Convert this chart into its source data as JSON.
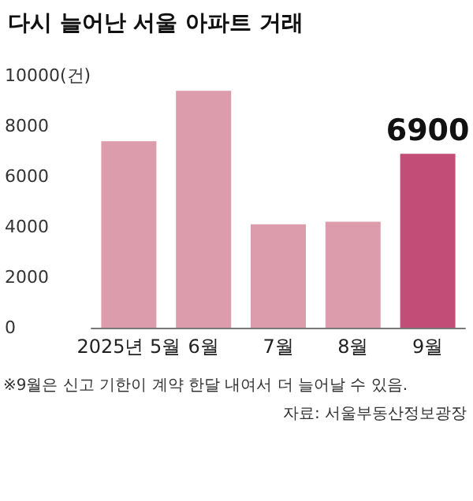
{
  "chart_data": {
    "type": "bar",
    "title": "다시 늘어난 서울 아파트 거래",
    "categories": [
      "2025년 5월",
      "6월",
      "7월",
      "8월",
      "9월"
    ],
    "values": [
      7400,
      9400,
      4100,
      4200,
      6900
    ],
    "colors": [
      "#dc9cac",
      "#dc9cac",
      "#dc9cac",
      "#dc9cac",
      "#c24d76"
    ],
    "value_labels": [
      null,
      null,
      null,
      null,
      "6900"
    ],
    "ylim": [
      0,
      10000
    ],
    "yticks": [
      0,
      2000,
      4000,
      6000,
      8000,
      {
        "value": 10000,
        "label": "10000(건)"
      }
    ],
    "grid": false,
    "annotations": [
      "※9월은 신고 기한이 계약 한달 내여서 더 늘어날 수 있음.",
      "자료: 서울부동산정보광장"
    ]
  }
}
